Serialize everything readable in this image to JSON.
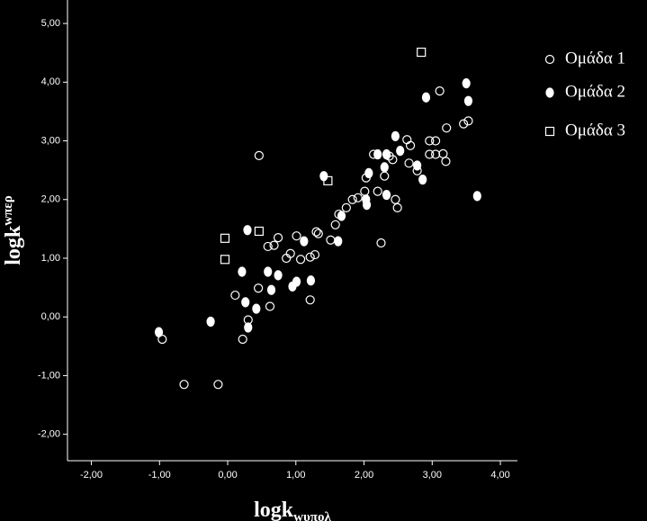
{
  "chart_data": {
    "type": "scatter",
    "xlabel": "logk",
    "xlabel_subscript": "wυπολ",
    "ylabel": "logk",
    "ylabel_superscript": "wπερ",
    "xlim": [
      -2.35,
      4.25
    ],
    "ylim": [
      -2.45,
      5.4
    ],
    "xticks": [
      {
        "value": -2,
        "label": "-2,00"
      },
      {
        "value": -1,
        "label": "-1,00"
      },
      {
        "value": 0,
        "label": "0,00"
      },
      {
        "value": 1,
        "label": "1,00"
      },
      {
        "value": 2,
        "label": "2,00"
      },
      {
        "value": 3,
        "label": "3,00"
      },
      {
        "value": 4,
        "label": "4,00"
      }
    ],
    "yticks": [
      {
        "value": -2,
        "label": "-2,00"
      },
      {
        "value": -1,
        "label": "-1,00"
      },
      {
        "value": 0,
        "label": "0,00"
      },
      {
        "value": 1,
        "label": "1,00"
      },
      {
        "value": 2,
        "label": "2,00"
      },
      {
        "value": 3,
        "label": "3,00"
      },
      {
        "value": 4,
        "label": "4,00"
      },
      {
        "value": 5,
        "label": "5,00"
      }
    ],
    "grid": false,
    "legend": "right",
    "series": [
      {
        "name": "Ομάδα 1",
        "color": "#ffffff",
        "marker": "circle",
        "filled": false,
        "x": [
          -0.96,
          -0.64,
          -0.14,
          0.22,
          0.3,
          0.11,
          0.45,
          0.62,
          0.59,
          0.68,
          0.74,
          0.46,
          0.86,
          0.92,
          1.01,
          1.07,
          1.21,
          1.21,
          1.28,
          1.3,
          1.33,
          1.51,
          1.58,
          1.63,
          1.74,
          1.83,
          1.91,
          2.01,
          2.03,
          2.14,
          2.25,
          2.3,
          2.37,
          2.42,
          2.49,
          2.63,
          2.68,
          2.66,
          2.78,
          2.96,
          3.05,
          2.96,
          3.05,
          3.11,
          3.21,
          3.16,
          3.2,
          3.46,
          3.53,
          2.2,
          2.46
        ],
        "values": [
          -0.38,
          -1.15,
          -1.15,
          -0.38,
          -0.05,
          0.37,
          0.49,
          0.18,
          1.2,
          1.22,
          1.35,
          2.75,
          1.0,
          1.08,
          1.38,
          0.98,
          0.29,
          1.02,
          1.06,
          1.45,
          1.42,
          1.31,
          1.57,
          1.75,
          1.86,
          2.0,
          2.03,
          2.14,
          2.37,
          2.77,
          1.26,
          2.4,
          2.74,
          2.68,
          1.86,
          3.02,
          2.92,
          2.62,
          2.49,
          3.0,
          3.0,
          2.77,
          2.77,
          3.85,
          3.22,
          2.78,
          2.65,
          3.29,
          3.34,
          2.14,
          2.0
        ]
      },
      {
        "name": "Ομάδα 2",
        "color": "#ffffff",
        "marker": "ellipse",
        "filled": true,
        "x": [
          -1.01,
          -0.25,
          0.3,
          0.26,
          0.42,
          0.21,
          0.64,
          0.59,
          0.74,
          0.29,
          0.95,
          1.01,
          1.22,
          1.12,
          1.62,
          1.41,
          1.67,
          2.04,
          2.03,
          2.07,
          2.33,
          2.3,
          2.33,
          2.46,
          2.53,
          2.78,
          2.86,
          2.91,
          3.5,
          3.53,
          3.66,
          2.2
        ],
        "values": [
          -0.26,
          -0.08,
          -0.18,
          0.25,
          0.14,
          0.77,
          0.46,
          0.77,
          0.71,
          1.48,
          0.52,
          0.6,
          0.62,
          1.29,
          1.29,
          2.4,
          1.72,
          1.91,
          2.0,
          2.45,
          2.08,
          2.55,
          2.77,
          3.08,
          2.83,
          2.58,
          2.34,
          3.74,
          3.98,
          3.68,
          2.06,
          2.77
        ]
      },
      {
        "name": "Ομάδα 3",
        "color": "#ffffff",
        "marker": "square",
        "filled": false,
        "x": [
          2.84,
          1.47,
          0.46,
          -0.04,
          -0.04
        ],
        "values": [
          4.51,
          2.32,
          1.46,
          1.34,
          0.98
        ]
      }
    ]
  }
}
